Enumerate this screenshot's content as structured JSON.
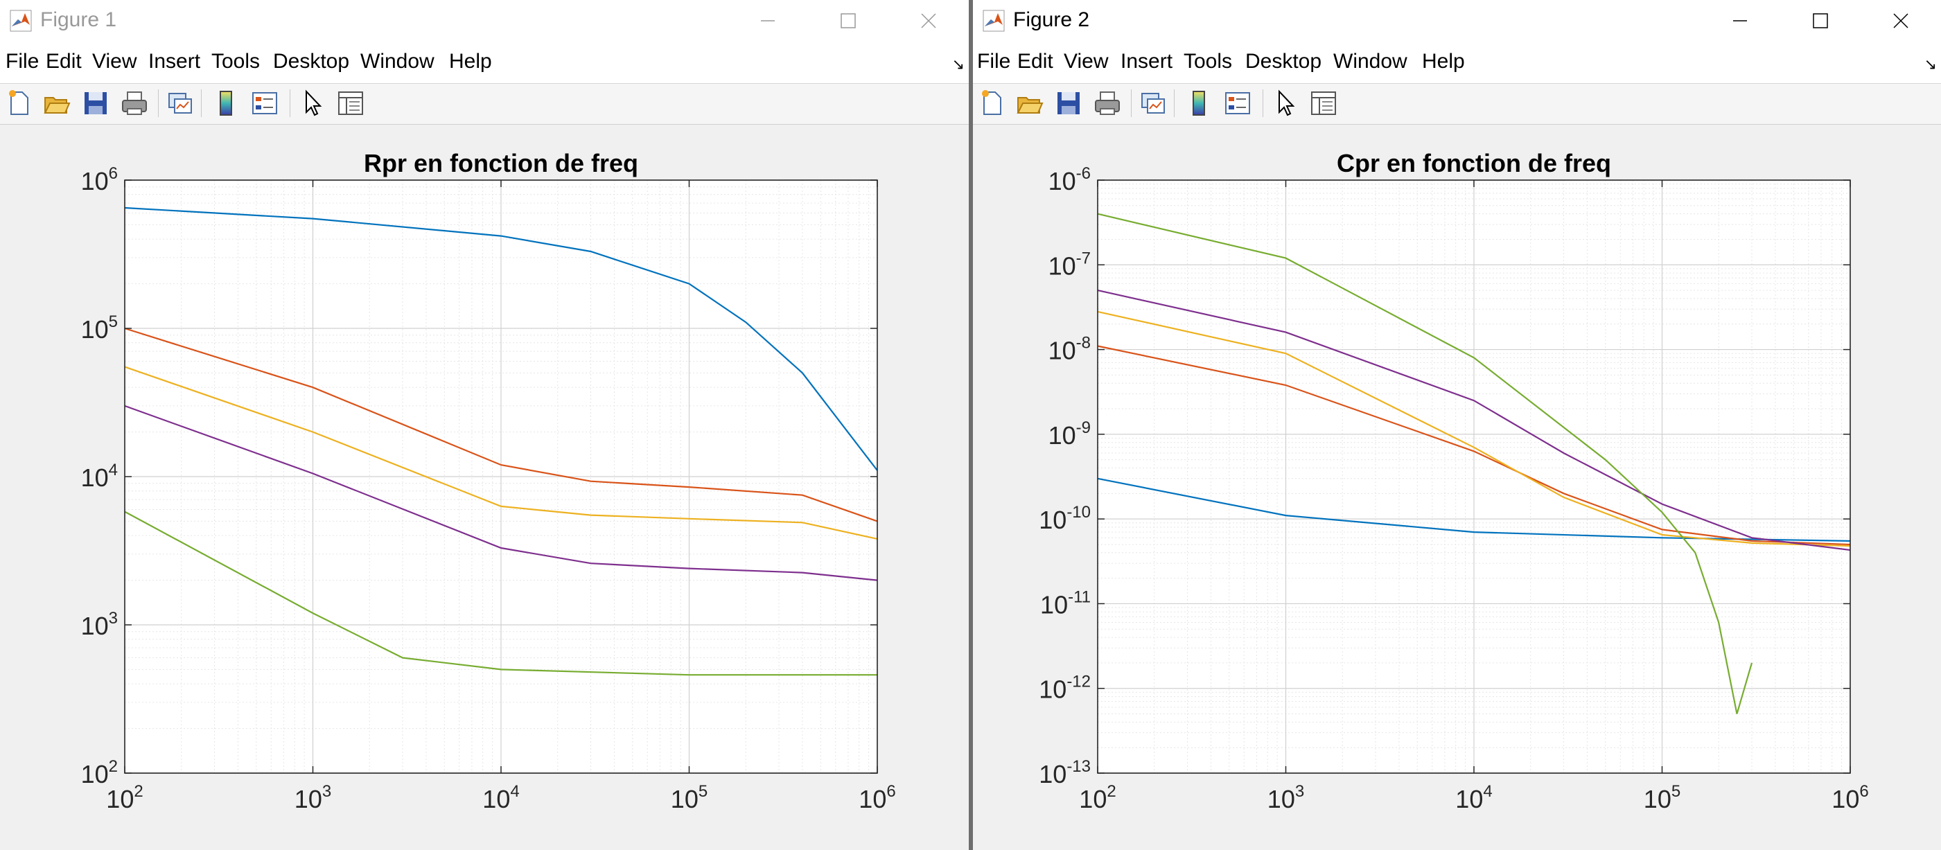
{
  "windows": [
    {
      "title": "Figure 1",
      "menu": [
        "File",
        "Edit",
        "View",
        "Insert",
        "Tools",
        "Desktop",
        "Window",
        "Help"
      ],
      "toolbar": [
        "new-figure-icon",
        "open-file-icon",
        "save-icon",
        "print-icon",
        "link-plot-icon",
        "insert-colorbar-icon",
        "insert-legend-icon",
        "edit-plot-icon",
        "property-inspector-icon"
      ],
      "chart_data": {
        "type": "line",
        "title": "Rpr en fonction de freq",
        "xscale": "log",
        "yscale": "log",
        "xlim": [
          100,
          1000000
        ],
        "ylim": [
          100,
          1000000
        ],
        "grid": "on (major and minor)",
        "xticks": [
          "10^2",
          "10^3",
          "10^4",
          "10^5",
          "10^6"
        ],
        "yticks": [
          "10^2",
          "10^3",
          "10^4",
          "10^5",
          "10^6"
        ],
        "series": [
          {
            "color": "#0072bd",
            "x": [
              100,
              1000,
              10000,
              30000,
              100000,
              200000,
              400000,
              1000000
            ],
            "y": [
              650000,
              550000,
              420000,
              330000,
              200000,
              110000,
              50000,
              11000
            ]
          },
          {
            "color": "#d95319",
            "x": [
              100,
              1000,
              10000,
              30000,
              100000,
              400000,
              1000000
            ],
            "y": [
              100000,
              40000,
              12000,
              9300,
              8500,
              7500,
              5000
            ]
          },
          {
            "color": "#edb120",
            "x": [
              100,
              1000,
              10000,
              30000,
              100000,
              400000,
              1000000
            ],
            "y": [
              55000,
              20000,
              6300,
              5500,
              5200,
              4900,
              3800
            ]
          },
          {
            "color": "#7e2f8e",
            "x": [
              100,
              1000,
              10000,
              30000,
              100000,
              400000,
              1000000
            ],
            "y": [
              30000,
              10500,
              3300,
              2600,
              2400,
              2250,
              2000
            ]
          },
          {
            "color": "#77ac30",
            "x": [
              100,
              1000,
              3000,
              10000,
              100000,
              1000000
            ],
            "y": [
              5800,
              1200,
              600,
              500,
              460,
              460
            ]
          }
        ]
      }
    },
    {
      "title": "Figure 2",
      "menu": [
        "File",
        "Edit",
        "View",
        "Insert",
        "Tools",
        "Desktop",
        "Window",
        "Help"
      ],
      "toolbar": [
        "new-figure-icon",
        "open-file-icon",
        "save-icon",
        "print-icon",
        "link-plot-icon",
        "insert-colorbar-icon",
        "insert-legend-icon",
        "edit-plot-icon",
        "property-inspector-icon"
      ],
      "chart_data": {
        "type": "line",
        "title": "Cpr en fonction de freq",
        "xscale": "log",
        "yscale": "log",
        "xlim": [
          100,
          1000000
        ],
        "ylim": [
          1e-13,
          1e-06
        ],
        "grid": "on (major and minor)",
        "xticks": [
          "10^2",
          "10^3",
          "10^4",
          "10^5",
          "10^6"
        ],
        "yticks": [
          "10^-13",
          "10^-12",
          "10^-11",
          "10^-10",
          "10^-9",
          "10^-8",
          "10^-7",
          "10^-6"
        ],
        "series": [
          {
            "color": "#0072bd",
            "x": [
              100,
              1000,
              10000,
              100000,
              1000000
            ],
            "y": [
              3e-10,
              1.1e-10,
              7e-11,
              6e-11,
              5.5e-11
            ]
          },
          {
            "color": "#d95319",
            "x": [
              100,
              1000,
              10000,
              30000,
              100000,
              300000,
              1000000
            ],
            "y": [
              1.1e-08,
              3.8e-09,
              6.3e-10,
              2e-10,
              7.5e-11,
              5.5e-11,
              5e-11
            ]
          },
          {
            "color": "#edb120",
            "x": [
              100,
              1000,
              10000,
              30000,
              100000,
              300000,
              1000000
            ],
            "y": [
              2.8e-08,
              9e-09,
              7e-10,
              1.8e-10,
              6.5e-11,
              5.2e-11,
              4.8e-11
            ]
          },
          {
            "color": "#7e2f8e",
            "x": [
              100,
              1000,
              10000,
              30000,
              100000,
              300000,
              1000000
            ],
            "y": [
              5e-08,
              1.6e-08,
              2.5e-09,
              6e-10,
              1.5e-10,
              6e-11,
              4.3e-11
            ]
          },
          {
            "color": "#77ac30",
            "x": [
              100,
              1000,
              10000,
              50000,
              100000,
              150000,
              200000,
              250000,
              300000
            ],
            "y": [
              4e-07,
              1.2e-07,
              8e-09,
              5e-10,
              1.2e-10,
              4e-11,
              6e-12,
              5e-13,
              2e-12
            ]
          }
        ]
      }
    }
  ]
}
